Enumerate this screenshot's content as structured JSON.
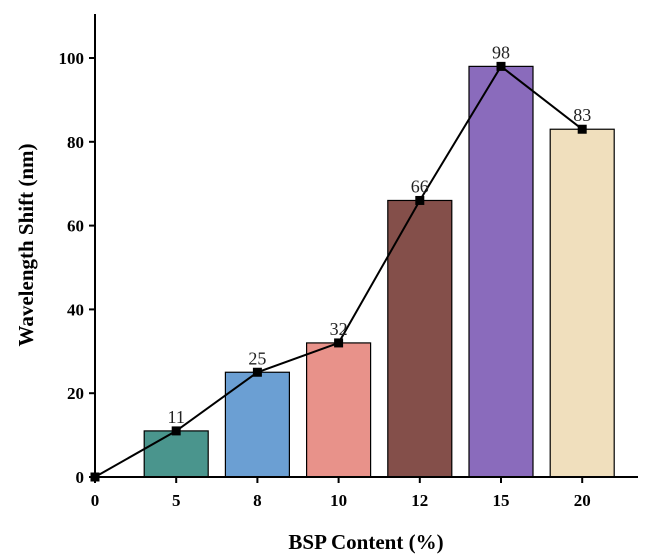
{
  "chart_data": {
    "type": "bar",
    "categories": [
      "0",
      "5",
      "8",
      "10",
      "12",
      "15",
      "20"
    ],
    "values": [
      0,
      11,
      25,
      32,
      66,
      98,
      83
    ],
    "data_labels": [
      "",
      "11",
      "25",
      "32",
      "66",
      "98",
      "83"
    ],
    "bar_colors": [
      "",
      "#4a958d",
      "#6b9fd3",
      "#e8928a",
      "#844f4a",
      "#8a6bbc",
      "#f0dfbd"
    ],
    "line_overlay": true,
    "title": "",
    "xlabel": "BSP Content (%)",
    "ylabel": "Wavelength Shift (nm)",
    "ylim": [
      0,
      110
    ],
    "yticks": [
      0,
      20,
      40,
      60,
      80,
      100
    ],
    "grid": false
  }
}
